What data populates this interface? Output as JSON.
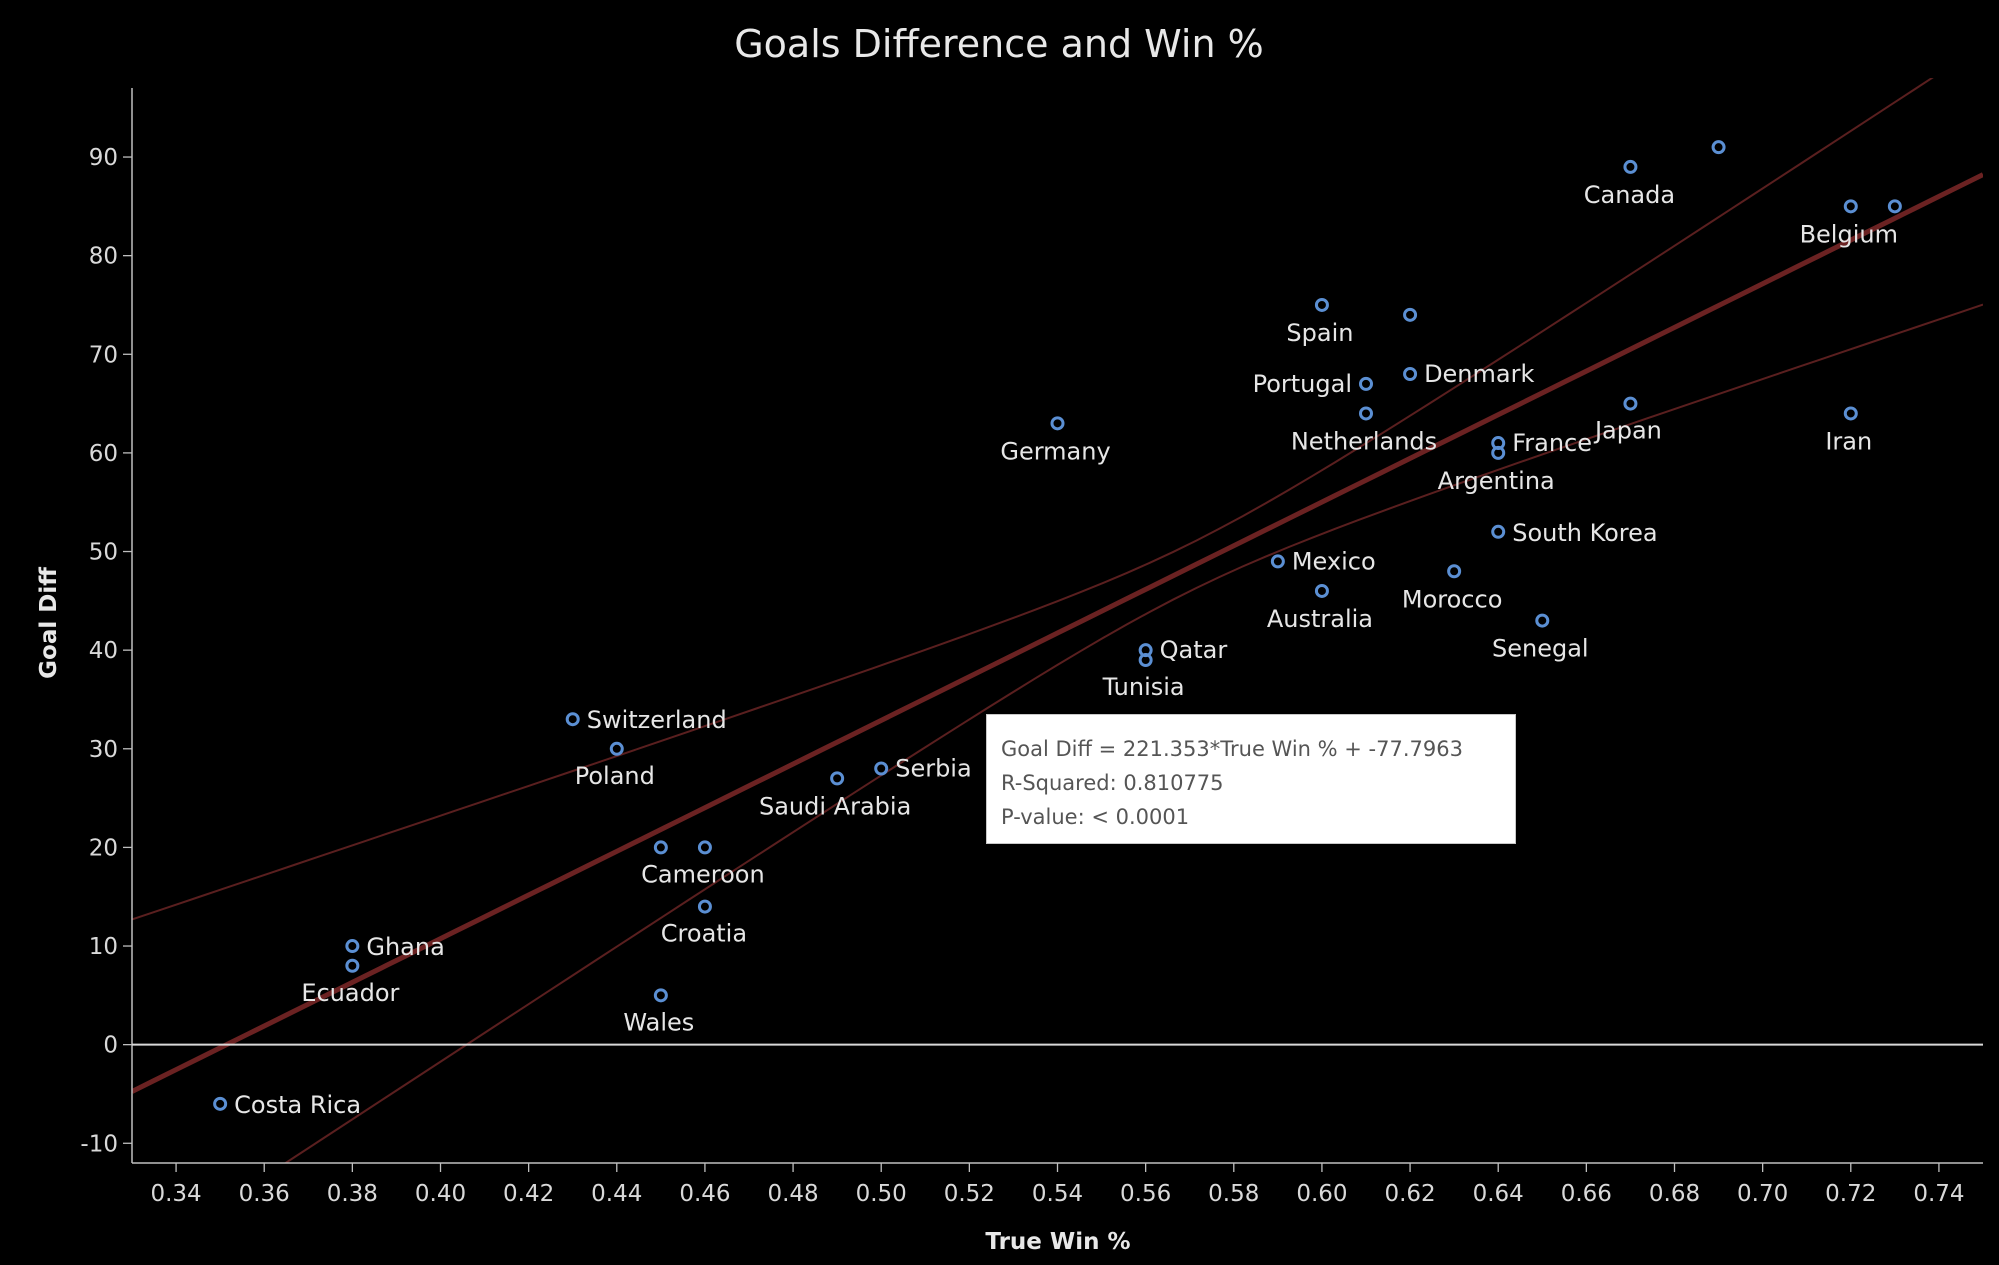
{
  "title": "Goals Difference and Win %",
  "chart_data": {
    "type": "scatter",
    "title": "Goals Difference and Win %",
    "xlabel": "True Win %",
    "ylabel": "Goal Diff",
    "xlim": [
      0.33,
      0.75
    ],
    "ylim": [
      -12,
      97
    ],
    "x_ticks": [
      "0.34",
      "0.36",
      "0.38",
      "0.40",
      "0.42",
      "0.44",
      "0.46",
      "0.48",
      "0.50",
      "0.52",
      "0.54",
      "0.56",
      "0.58",
      "0.60",
      "0.62",
      "0.64",
      "0.66",
      "0.68",
      "0.70",
      "0.72",
      "0.74"
    ],
    "y_ticks": [
      "-10",
      "0",
      "10",
      "20",
      "30",
      "40",
      "50",
      "60",
      "70",
      "80",
      "90"
    ],
    "grid": false,
    "points": [
      {
        "x": 0.69,
        "y": 91
      },
      {
        "x": 0.67,
        "y": 89,
        "label": "Canada"
      },
      {
        "x": 0.72,
        "y": 85,
        "label": "Belgium"
      },
      {
        "x": 0.73,
        "y": 85
      },
      {
        "x": 0.6,
        "y": 75,
        "label": "Spain"
      },
      {
        "x": 0.62,
        "y": 74
      },
      {
        "x": 0.62,
        "y": 68,
        "label": "Denmark"
      },
      {
        "x": 0.61,
        "y": 67,
        "label": "Portugal"
      },
      {
        "x": 0.67,
        "y": 65,
        "label": "Japan"
      },
      {
        "x": 0.61,
        "y": 64,
        "label": "Netherlands"
      },
      {
        "x": 0.72,
        "y": 64,
        "label": "Iran"
      },
      {
        "x": 0.54,
        "y": 63,
        "label": "Germany"
      },
      {
        "x": 0.64,
        "y": 61,
        "label": "France"
      },
      {
        "x": 0.64,
        "y": 60,
        "label": "Argentina"
      },
      {
        "x": 0.64,
        "y": 52,
        "label": "South Korea"
      },
      {
        "x": 0.59,
        "y": 49,
        "label": "Mexico"
      },
      {
        "x": 0.63,
        "y": 48,
        "label": "Morocco"
      },
      {
        "x": 0.6,
        "y": 46,
        "label": "Australia"
      },
      {
        "x": 0.65,
        "y": 43,
        "label": "Senegal"
      },
      {
        "x": 0.56,
        "y": 40,
        "label": "Qatar"
      },
      {
        "x": 0.56,
        "y": 39,
        "label": "Tunisia"
      },
      {
        "x": 0.43,
        "y": 33,
        "label": "Switzerland"
      },
      {
        "x": 0.44,
        "y": 30,
        "label": "Poland"
      },
      {
        "x": 0.5,
        "y": 28,
        "label": "Serbia"
      },
      {
        "x": 0.49,
        "y": 27,
        "label": "Saudi Arabia"
      },
      {
        "x": 0.45,
        "y": 20
      },
      {
        "x": 0.46,
        "y": 20,
        "label": "Cameroon"
      },
      {
        "x": 0.46,
        "y": 14,
        "label": "Croatia"
      },
      {
        "x": 0.38,
        "y": 10,
        "label": "Ghana"
      },
      {
        "x": 0.38,
        "y": 8,
        "label": "Ecuador"
      },
      {
        "x": 0.45,
        "y": 5,
        "label": "Wales"
      },
      {
        "x": 0.35,
        "y": -6,
        "label": "Costa Rica"
      }
    ],
    "trend_line": {
      "slope": 221.353,
      "intercept": -77.7963,
      "color": "#6b2222",
      "band_color": "#5a1f1f"
    },
    "point_color": "#5b8fd3"
  },
  "tooltip": {
    "equation": "Goal Diff = 221.353*True Win % + -77.7963",
    "r_squared": "R-Squared: 0.810775",
    "p_value": "P-value: < 0.0001"
  }
}
